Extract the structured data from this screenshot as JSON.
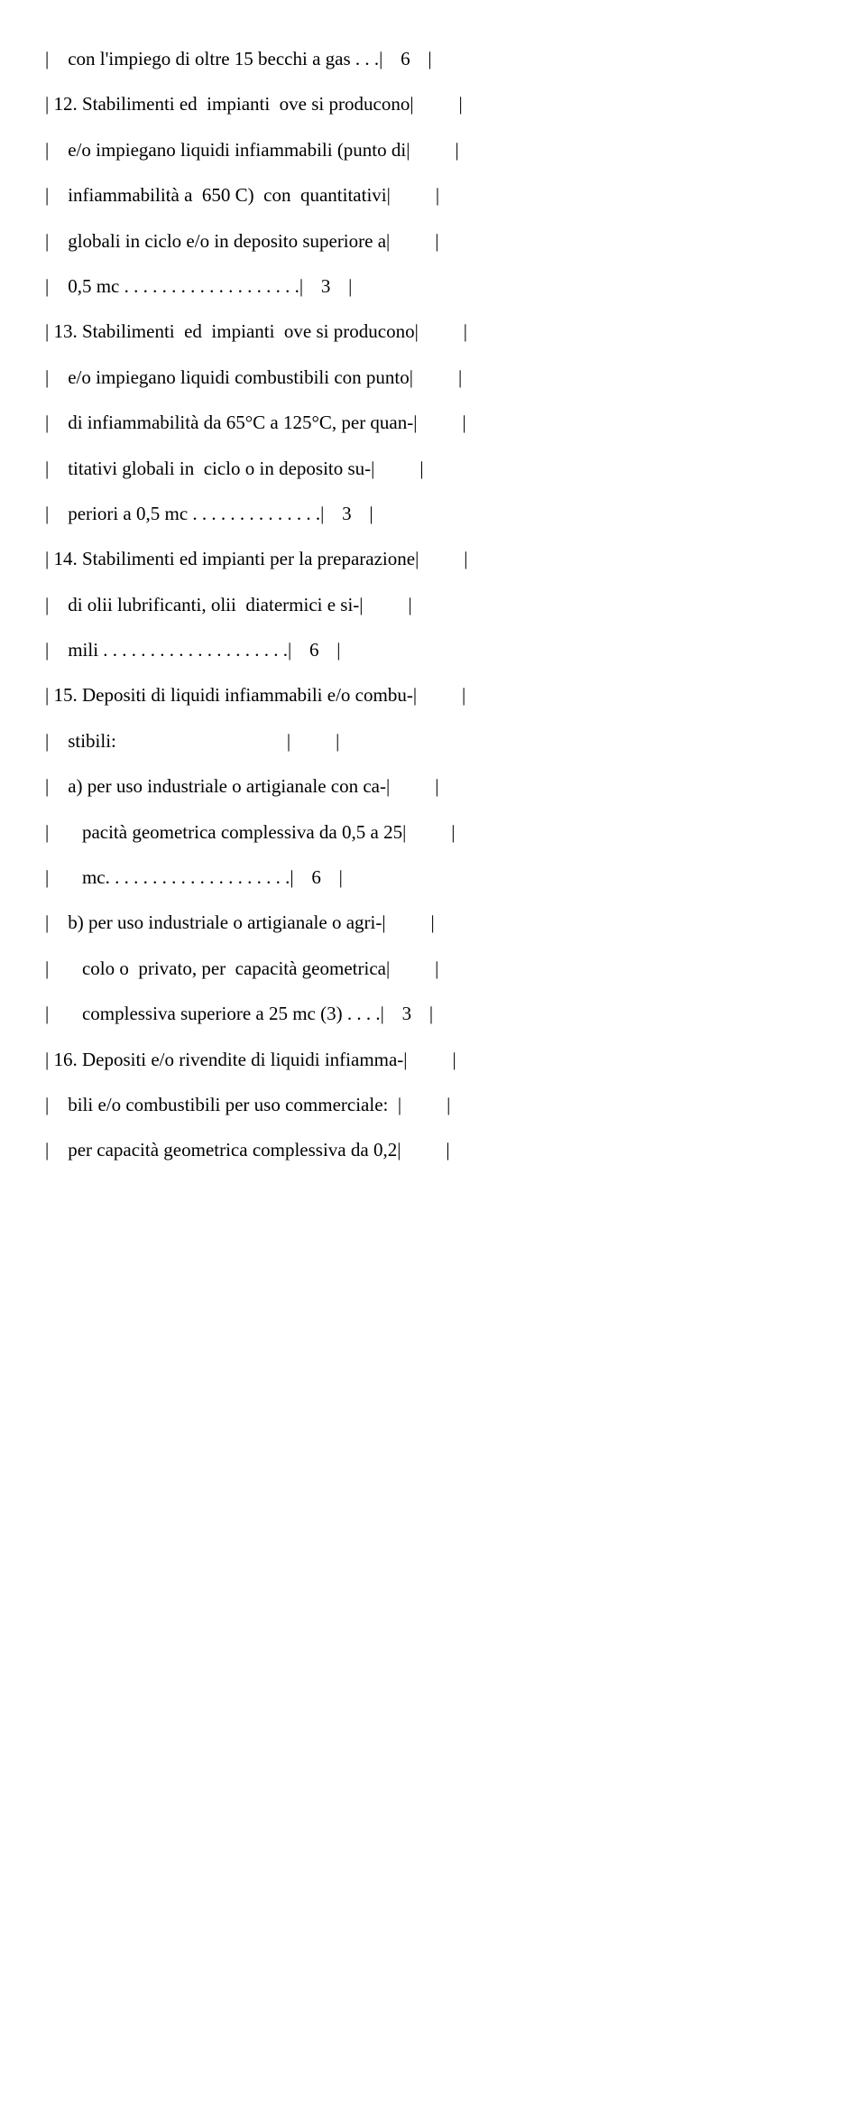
{
  "lines": [
    {
      "left": "|    con l'impiego di oltre 15 becchi a gas . . .|",
      "num": "6",
      "right": "|"
    },
    {
      "left": "| 12. Stabilimenti ed  impianti  ove si producono|",
      "num": "",
      "right": "|"
    },
    {
      "left": "|    e/o impiegano liquidi infiammabili (punto di|",
      "num": "",
      "right": "|"
    },
    {
      "left": "|    infiammabilità a  650 C)  con  quantitativi|",
      "num": "",
      "right": "|"
    },
    {
      "left": "|    globali in ciclo e/o in deposito superiore a|",
      "num": "",
      "right": "|"
    },
    {
      "left": "|    0,5 mc . . . . . . . . . . . . . . . . . . .|",
      "num": "3",
      "right": "|"
    },
    {
      "left": "| 13. Stabilimenti  ed  impianti  ove si producono|",
      "num": "",
      "right": "|"
    },
    {
      "left": "|    e/o impiegano liquidi combustibili con punto|",
      "num": "",
      "right": "|"
    },
    {
      "left": "|    di infiammabilità da 65°C a 125°C, per quan-|",
      "num": "",
      "right": "|"
    },
    {
      "left": "|    titativi globali in  ciclo o in deposito su-|",
      "num": "",
      "right": "|"
    },
    {
      "left": "|    periori a 0,5 mc . . . . . . . . . . . . . .|",
      "num": "3",
      "right": "|"
    },
    {
      "left": "| 14. Stabilimenti ed impianti per la preparazione|",
      "num": "",
      "right": "|"
    },
    {
      "left": "|    di olii lubrificanti, olii  diatermici e si-|",
      "num": "",
      "right": "|"
    },
    {
      "left": "|    mili . . . . . . . . . . . . . . . . . . . .|",
      "num": "6",
      "right": "|"
    },
    {
      "left": "| 15. Depositi di liquidi infiammabili e/o combu-|",
      "num": "",
      "right": "|"
    },
    {
      "left": "|    stibili:                                    |",
      "num": "",
      "right": "|"
    },
    {
      "left": "|    a) per uso industriale o artigianale con ca-|",
      "num": "",
      "right": "|"
    },
    {
      "left": "|       pacità geometrica complessiva da 0,5 a 25|",
      "num": "",
      "right": "|"
    },
    {
      "left": "|       mc. . . . . . . . . . . . . . . . . . . .|",
      "num": "6",
      "right": "|"
    },
    {
      "left": "|    b) per uso industriale o artigianale o agri-|",
      "num": "",
      "right": "|"
    },
    {
      "left": "|       colo o  privato, per  capacità geometrica|",
      "num": "",
      "right": "|"
    },
    {
      "left": "|       complessiva superiore a 25 mc (3) . . . .|",
      "num": "3",
      "right": "|"
    },
    {
      "left": "| 16. Depositi e/o rivendite di liquidi infiamma-|",
      "num": "",
      "right": "|"
    },
    {
      "left": "|    bili e/o combustibili per uso commerciale:  |",
      "num": "",
      "right": "|"
    },
    {
      "left": "|    per capacità geometrica complessiva da 0,2|",
      "num": "",
      "right": "|"
    }
  ]
}
